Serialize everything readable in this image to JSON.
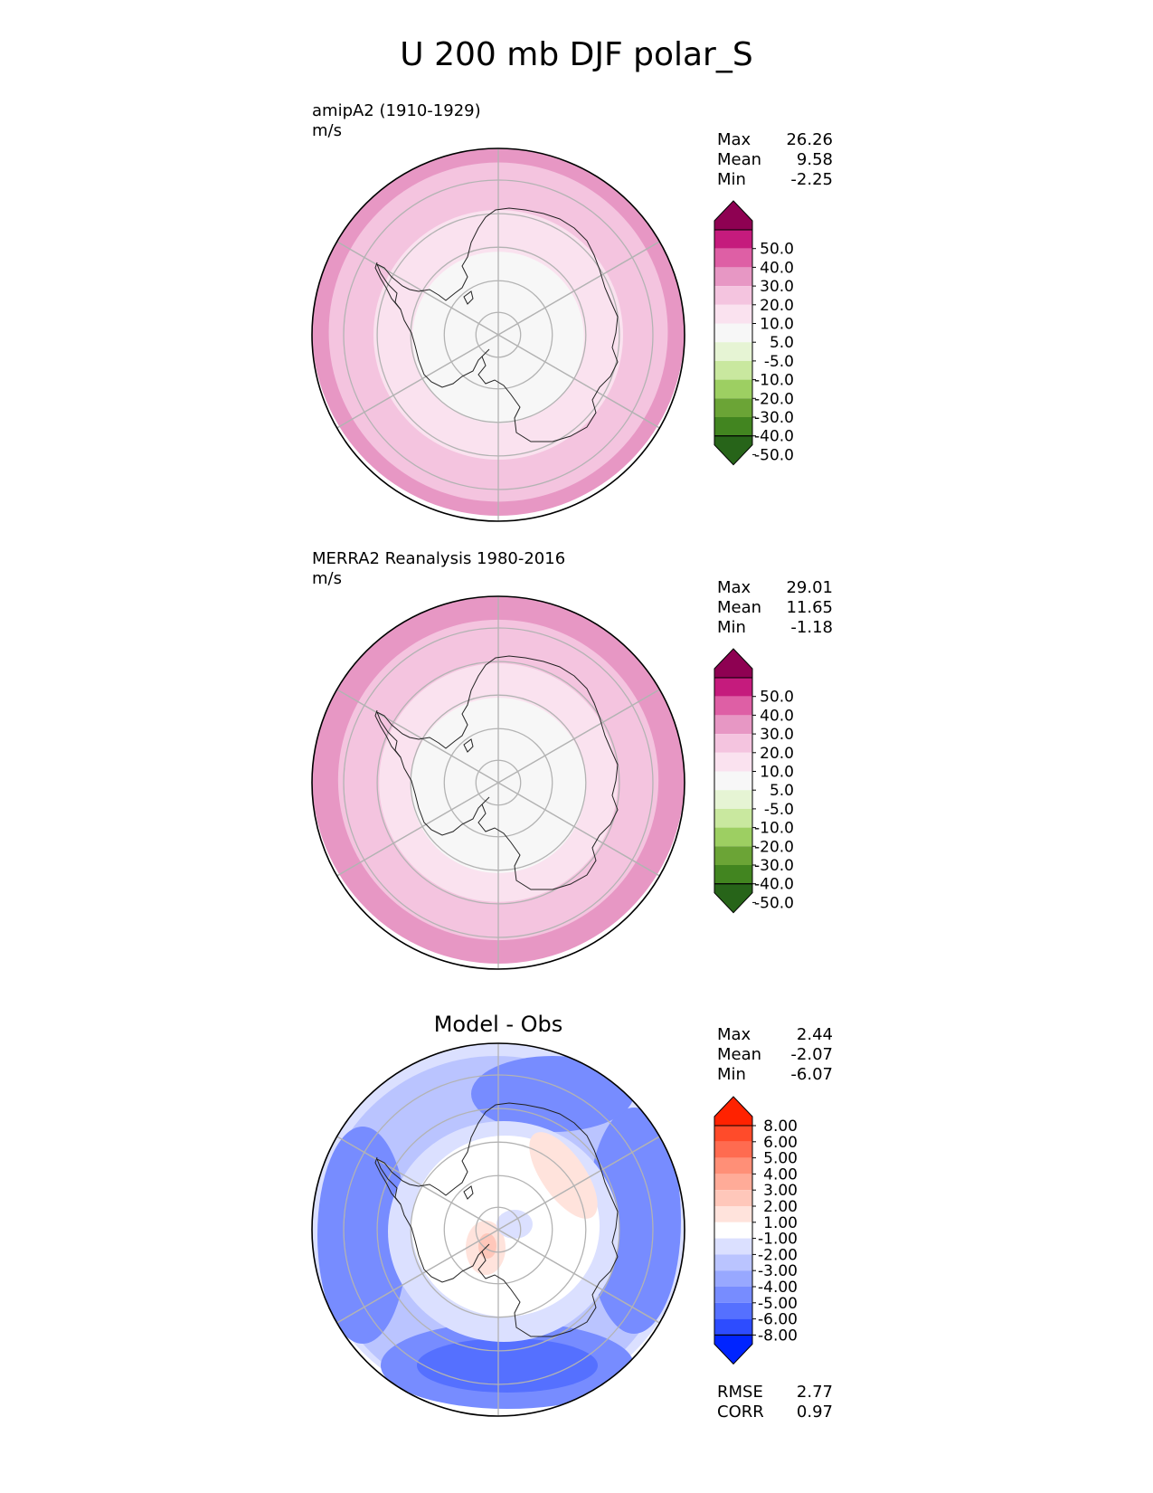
{
  "title": "U 200 mb DJF polar_S",
  "panels": [
    {
      "id": "model",
      "label": "amipA2 (1910-1929)",
      "units": "m/s",
      "max_label": "Max",
      "mean_label": "Mean",
      "min_label": "Min",
      "max": "26.26",
      "mean": "9.58",
      "min": "-2.25",
      "bands": [
        {
          "r": 1.0,
          "color": "#e797c4"
        },
        {
          "r": 0.91,
          "color": "#f4c4df"
        },
        {
          "r": 0.67,
          "color": "#fae2ef"
        },
        {
          "r": 0.46,
          "color": "#f7f7f7"
        }
      ],
      "colorbar": {
        "ticks": [
          "50.0",
          "40.0",
          "30.0",
          "20.0",
          "10.0",
          "5.0",
          "-5.0",
          "-10.0",
          "-20.0",
          "-30.0",
          "-40.0",
          "-50.0"
        ],
        "colors": [
          "#8e0152",
          "#c51b7d",
          "#de5fa5",
          "#e797c4",
          "#f4c4df",
          "#fae2ef",
          "#f7f7f7",
          "#e6f4d4",
          "#c9e89f",
          "#9dcf62",
          "#6ba436",
          "#428520",
          "#276419"
        ]
      }
    },
    {
      "id": "obs",
      "label": "MERRA2 Reanalysis 1980-2016",
      "units": "m/s",
      "max_label": "Max",
      "mean_label": "Mean",
      "min_label": "Min",
      "max": "29.01",
      "mean": "11.65",
      "min": "-1.18",
      "bands": [
        {
          "r": 1.0,
          "color": "#e797c4"
        },
        {
          "r": 0.86,
          "color": "#f4c4df"
        },
        {
          "r": 0.64,
          "color": "#fae2ef"
        },
        {
          "r": 0.47,
          "color": "#f7f7f7"
        }
      ],
      "colorbar": {
        "ticks": [
          "50.0",
          "40.0",
          "30.0",
          "20.0",
          "10.0",
          "5.0",
          "-5.0",
          "-10.0",
          "-20.0",
          "-30.0",
          "-40.0",
          "-50.0"
        ],
        "colors": [
          "#8e0152",
          "#c51b7d",
          "#de5fa5",
          "#e797c4",
          "#f4c4df",
          "#fae2ef",
          "#f7f7f7",
          "#e6f4d4",
          "#c9e89f",
          "#9dcf62",
          "#6ba436",
          "#428520",
          "#276419"
        ]
      }
    },
    {
      "id": "diff",
      "label": "Model - Obs",
      "max_label": "Max",
      "mean_label": "Mean",
      "min_label": "Min",
      "max": "2.44",
      "mean": "-2.07",
      "min": "-6.07",
      "rmse_label": "RMSE",
      "corr_label": "CORR",
      "rmse": "2.77",
      "corr": "0.97",
      "colorbar": {
        "ticks": [
          "8.00",
          "6.00",
          "5.00",
          "4.00",
          "3.00",
          "2.00",
          "1.00",
          "-1.00",
          "-2.00",
          "-3.00",
          "-4.00",
          "-5.00",
          "-6.00",
          "-8.00"
        ],
        "colors": [
          "#ff2200",
          "#ff4b2a",
          "#ff6b50",
          "#ff8f77",
          "#ffab98",
          "#ffc7ba",
          "#ffe3dc",
          "#ffffff",
          "#dbe0ff",
          "#bac4ff",
          "#98a8ff",
          "#778cff",
          "#5570ff",
          "#2d4cff",
          "#0024ff"
        ]
      }
    }
  ],
  "icons": {
    "continent": "antarctica-coastline",
    "graticule": "lat-lon-grid"
  }
}
